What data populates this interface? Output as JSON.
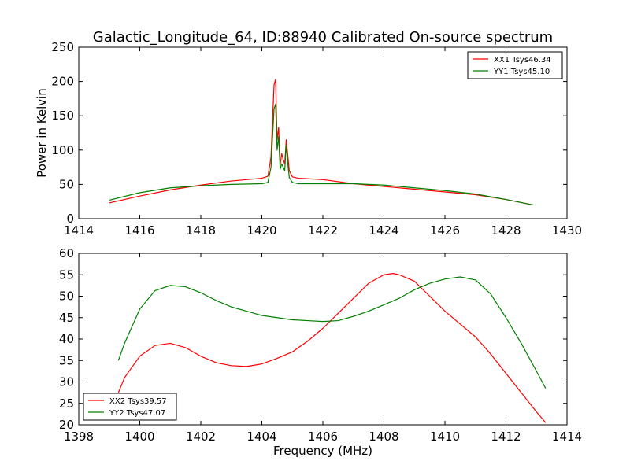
{
  "figure": {
    "title": "Galactic_Longitude_64, ID:88940 Calibrated On-source spectrum"
  },
  "chart_data": [
    {
      "type": "line",
      "title": "Galactic_Longitude_64, ID:88940 Calibrated On-source spectrum",
      "xlabel": "",
      "ylabel": "Power in Kelvin",
      "xlim": [
        1414,
        1430
      ],
      "ylim": [
        0,
        250
      ],
      "xticks": [
        "1414",
        "1416",
        "1418",
        "1420",
        "1422",
        "1424",
        "1426",
        "1428",
        "1430"
      ],
      "yticks": [
        "0",
        "50",
        "100",
        "150",
        "200",
        "250"
      ],
      "grid": false,
      "legend_position": "top-right",
      "series": [
        {
          "name": "XX1 Tsys46.34",
          "color": "#ff0000",
          "x": [
            1415.0,
            1416.0,
            1417.0,
            1418.0,
            1419.0,
            1420.0,
            1420.2,
            1420.3,
            1420.4,
            1420.45,
            1420.5,
            1420.55,
            1420.6,
            1420.65,
            1420.7,
            1420.75,
            1420.8,
            1420.85,
            1420.9,
            1421.0,
            1421.2,
            1422.0,
            1423.0,
            1424.0,
            1425.0,
            1426.0,
            1427.0,
            1428.0,
            1428.9
          ],
          "y": [
            23,
            33,
            42,
            49,
            55,
            59,
            62,
            90,
            195,
            203,
            115,
            133,
            78,
            95,
            86,
            80,
            115,
            93,
            70,
            61,
            59,
            57,
            51,
            47,
            43,
            39,
            35,
            28,
            20
          ]
        },
        {
          "name": "YY1 Tsys45.10",
          "color": "#008000",
          "x": [
            1415.0,
            1416.0,
            1417.0,
            1418.0,
            1419.0,
            1420.0,
            1420.2,
            1420.3,
            1420.4,
            1420.45,
            1420.5,
            1420.55,
            1420.6,
            1420.65,
            1420.7,
            1420.75,
            1420.8,
            1420.85,
            1420.9,
            1421.0,
            1421.2,
            1422.0,
            1423.0,
            1424.0,
            1425.0,
            1426.0,
            1427.0,
            1428.0,
            1428.9
          ],
          "y": [
            27,
            38,
            45,
            48,
            50,
            51,
            53,
            75,
            160,
            167,
            100,
            120,
            72,
            80,
            75,
            70,
            108,
            80,
            60,
            53,
            51,
            51,
            51,
            49,
            45,
            41,
            36,
            28,
            20
          ]
        }
      ]
    },
    {
      "type": "line",
      "title": "",
      "xlabel": "Frequency (MHz)",
      "ylabel": "",
      "xlim": [
        1398,
        1414
      ],
      "ylim": [
        20,
        60
      ],
      "xticks": [
        "1398",
        "1400",
        "1402",
        "1404",
        "1406",
        "1408",
        "1410",
        "1412",
        "1414"
      ],
      "yticks": [
        "20",
        "25",
        "30",
        "35",
        "40",
        "45",
        "50",
        "55",
        "60"
      ],
      "grid": false,
      "legend_position": "bottom-left",
      "series": [
        {
          "name": "XX2 Tsys39.57",
          "color": "#ff0000",
          "x": [
            1399.3,
            1399.5,
            1400.0,
            1400.5,
            1401.0,
            1401.5,
            1402.0,
            1402.5,
            1403.0,
            1403.5,
            1404.0,
            1404.5,
            1405.0,
            1405.5,
            1406.0,
            1406.5,
            1407.0,
            1407.5,
            1408.0,
            1408.3,
            1408.5,
            1409.0,
            1409.5,
            1410.0,
            1410.5,
            1411.0,
            1411.5,
            1412.0,
            1412.5,
            1413.0,
            1413.3
          ],
          "y": [
            27.5,
            31,
            36,
            38.5,
            39,
            38,
            36,
            34.5,
            33.8,
            33.6,
            34.2,
            35.5,
            37,
            39.5,
            42.5,
            46,
            49.5,
            53,
            55,
            55.3,
            55,
            53.5,
            50,
            46.5,
            43.5,
            40.5,
            36.5,
            32,
            27.5,
            23,
            20.5
          ]
        },
        {
          "name": "YY2 Tsys47.07",
          "color": "#008000",
          "x": [
            1399.3,
            1399.5,
            1400.0,
            1400.5,
            1401.0,
            1401.5,
            1402.0,
            1402.5,
            1403.0,
            1403.5,
            1404.0,
            1404.5,
            1405.0,
            1405.5,
            1406.0,
            1406.5,
            1407.0,
            1407.5,
            1408.0,
            1408.5,
            1409.0,
            1409.5,
            1410.0,
            1410.5,
            1411.0,
            1411.5,
            1412.0,
            1412.5,
            1413.0,
            1413.3
          ],
          "y": [
            35,
            39,
            47,
            51.3,
            52.5,
            52.2,
            50.8,
            49,
            47.5,
            46.5,
            45.5,
            45,
            44.5,
            44.3,
            44.1,
            44.3,
            45.3,
            46.5,
            48,
            49.5,
            51.5,
            53,
            54,
            54.5,
            53.8,
            50.5,
            45,
            39,
            32.5,
            28.5
          ]
        }
      ]
    }
  ]
}
